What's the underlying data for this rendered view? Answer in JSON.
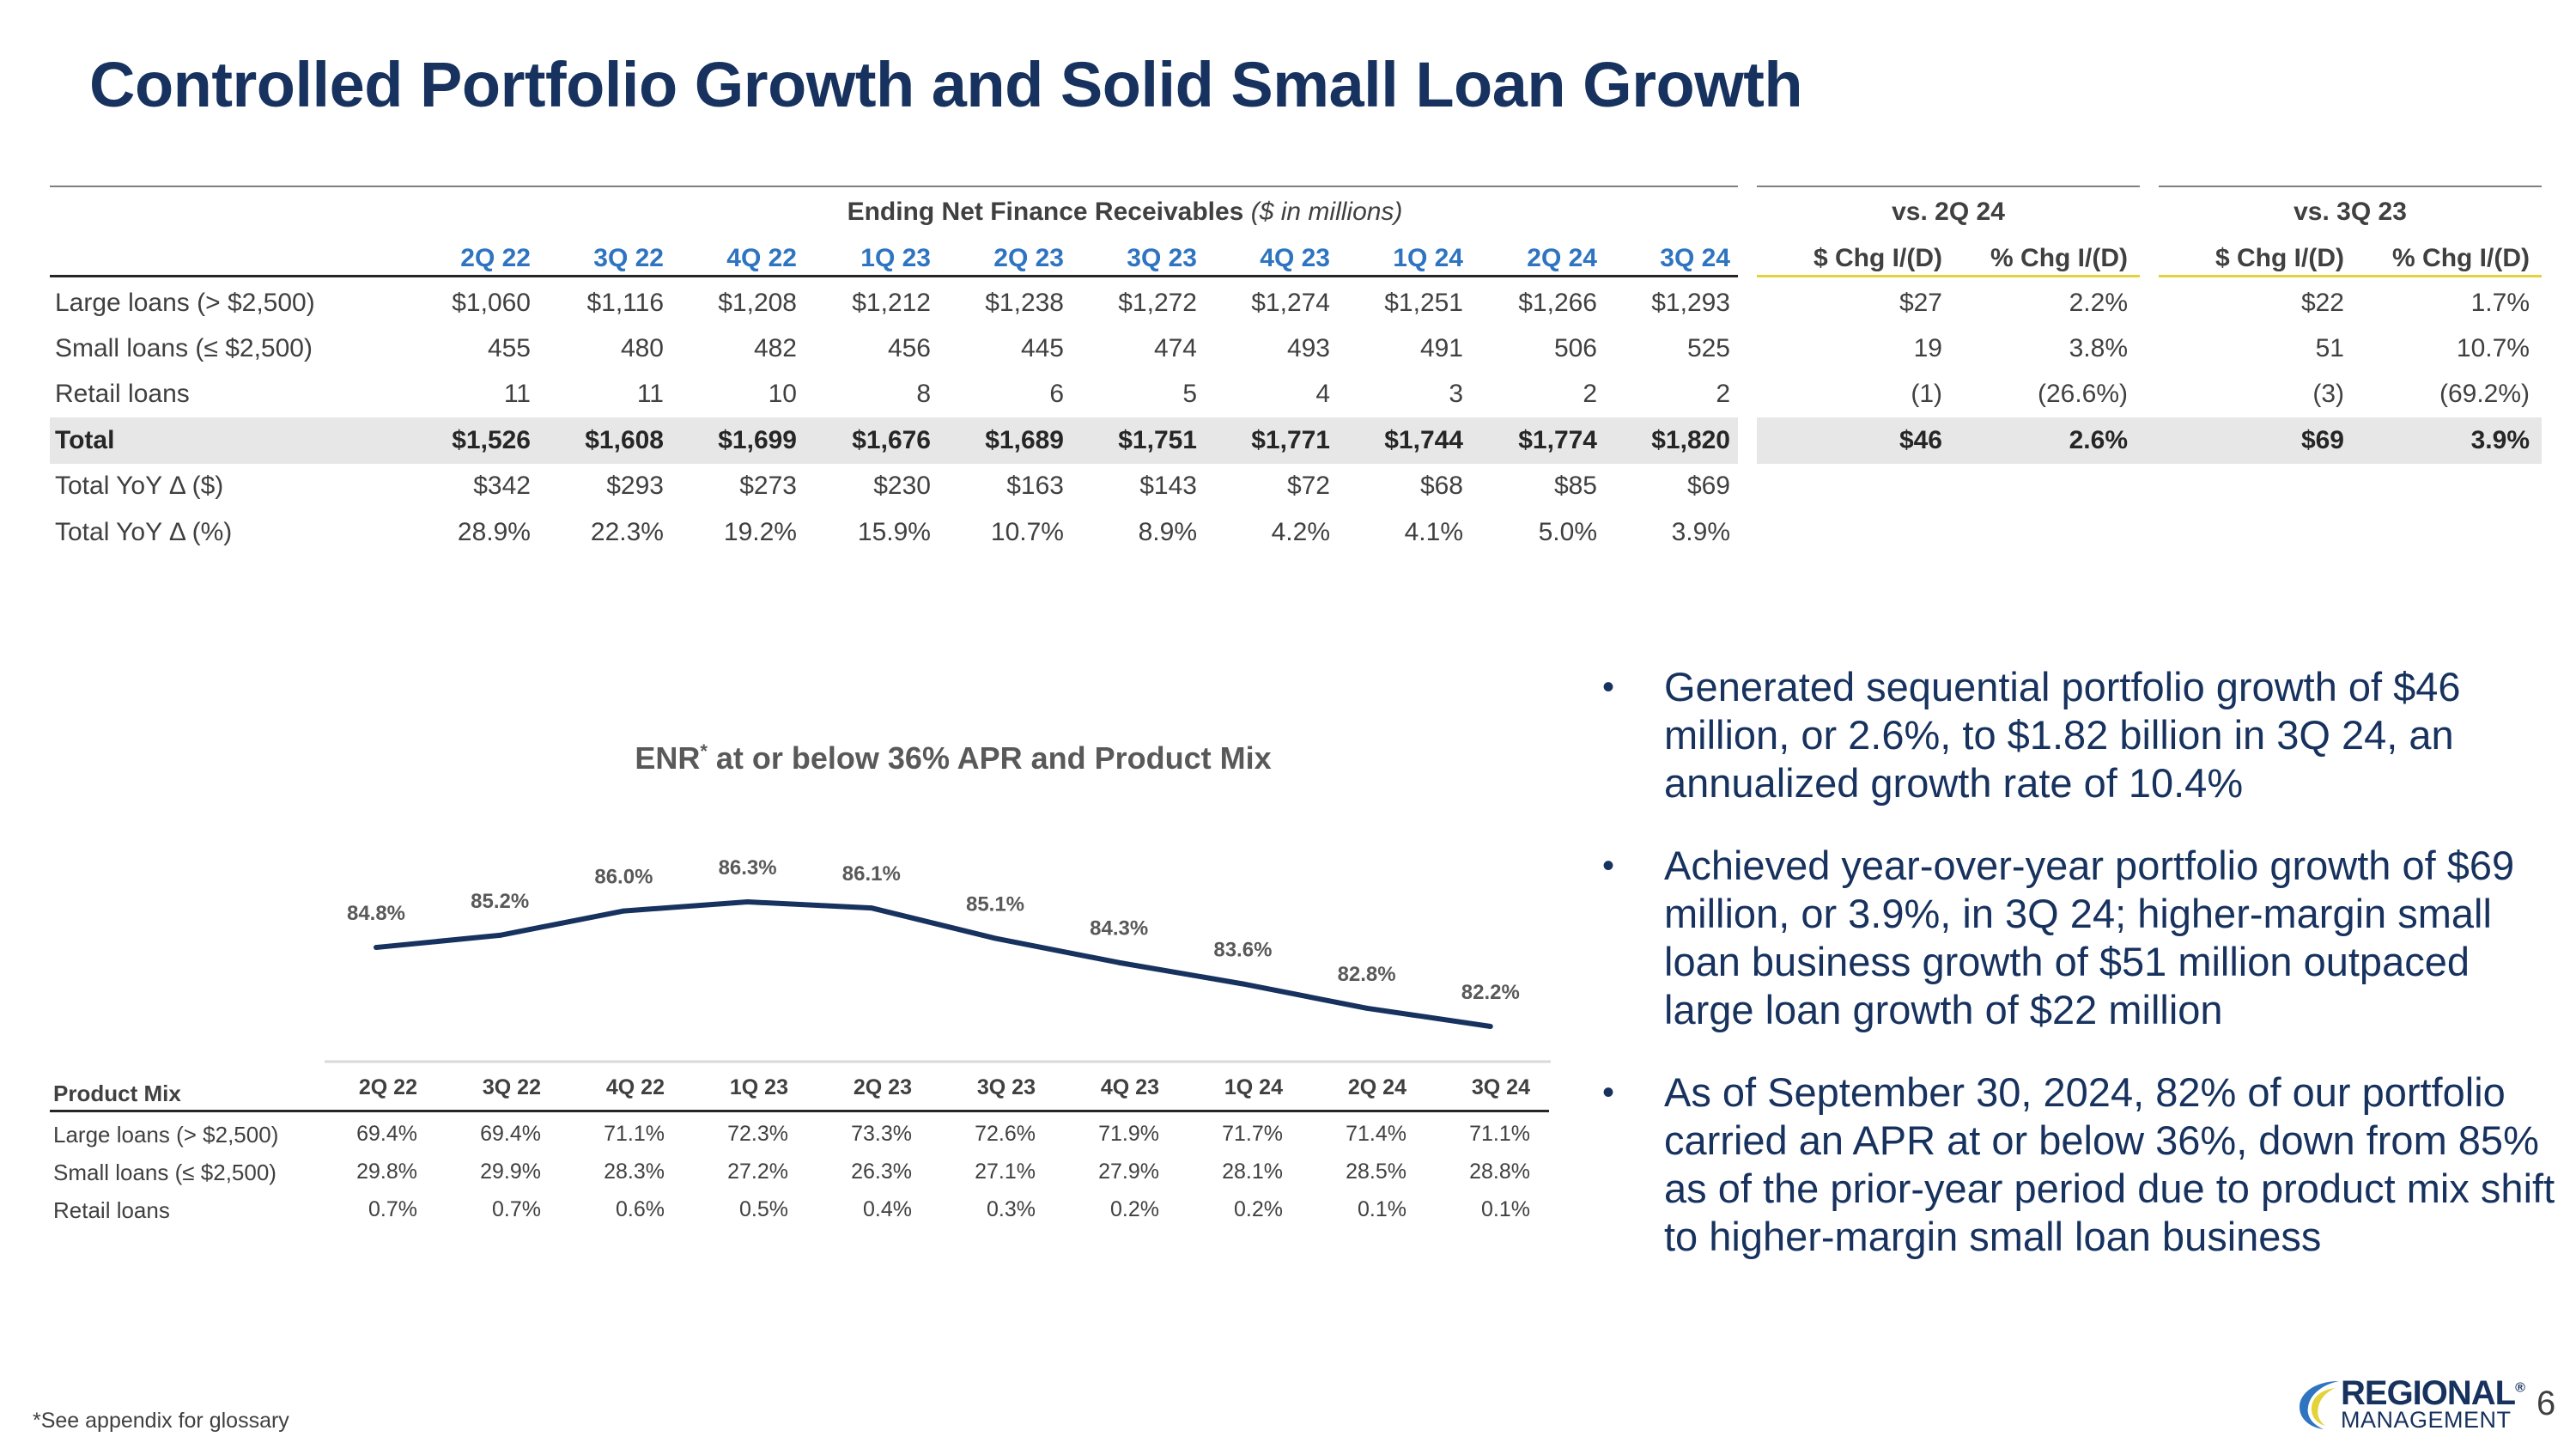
{
  "title": "Controlled Portfolio Growth and Solid Small Loan Growth",
  "enr_table": {
    "group_title_bold": "Ending Net Finance Receivables",
    "group_title_italic": "($ in millions)",
    "periods": [
      "2Q 22",
      "3Q 22",
      "4Q 22",
      "1Q 23",
      "2Q 23",
      "3Q 23",
      "4Q 23",
      "1Q 24",
      "2Q 24",
      "3Q 24"
    ],
    "vs_groups": [
      "vs. 2Q 24",
      "vs. 3Q 23"
    ],
    "chg_headers": [
      "$ Chg I/(D)",
      "% Chg I/(D)",
      "$ Chg I/(D)",
      "% Chg I/(D)"
    ],
    "rows": [
      {
        "label": "Large loans (> $2,500)",
        "values": [
          "$1,060",
          "$1,116",
          "$1,208",
          "$1,212",
          "$1,238",
          "$1,272",
          "$1,274",
          "$1,251",
          "$1,266",
          "$1,293"
        ],
        "chg": [
          "$27",
          "2.2%",
          "$22",
          "1.7%"
        ]
      },
      {
        "label": "Small loans (≤ $2,500)",
        "values": [
          "455",
          "480",
          "482",
          "456",
          "445",
          "474",
          "493",
          "491",
          "506",
          "525"
        ],
        "chg": [
          "19",
          "3.8%",
          "51",
          "10.7%"
        ]
      },
      {
        "label": "Retail loans",
        "values": [
          "11",
          "11",
          "10",
          "8",
          "6",
          "5",
          "4",
          "3",
          "2",
          "2"
        ],
        "chg": [
          "(1)",
          "(26.6%)",
          "(3)",
          "(69.2%)"
        ]
      },
      {
        "label": "Total",
        "values": [
          "$1,526",
          "$1,608",
          "$1,699",
          "$1,676",
          "$1,689",
          "$1,751",
          "$1,771",
          "$1,744",
          "$1,774",
          "$1,820"
        ],
        "chg": [
          "$46",
          "2.6%",
          "$69",
          "3.9%"
        ]
      },
      {
        "label": "Total YoY Δ ($)",
        "values": [
          "$342",
          "$293",
          "$273",
          "$230",
          "$163",
          "$143",
          "$72",
          "$68",
          "$85",
          "$69"
        ],
        "chg": []
      },
      {
        "label": "Total YoY Δ (%)",
        "values": [
          "28.9%",
          "22.3%",
          "19.2%",
          "15.9%",
          "10.7%",
          "8.9%",
          "4.2%",
          "4.1%",
          "5.0%",
          "3.9%"
        ],
        "chg": []
      }
    ]
  },
  "chart_data": {
    "type": "line",
    "title": "ENR at or below 36% APR and Product Mix",
    "title_main": "ENR",
    "title_sup": "*",
    "title_rest": " at or below 36% APR and Product Mix",
    "categories": [
      "2Q 22",
      "3Q 22",
      "4Q 22",
      "1Q 23",
      "2Q 23",
      "3Q 23",
      "4Q 23",
      "1Q 24",
      "2Q 24",
      "3Q 24"
    ],
    "series": [
      {
        "name": "ENR at or below 36% APR",
        "values": [
          84.8,
          85.2,
          86.0,
          86.3,
          86.1,
          85.1,
          84.3,
          83.6,
          82.8,
          82.2
        ]
      }
    ],
    "data_labels": [
      "84.8%",
      "85.2%",
      "86.0%",
      "86.3%",
      "86.1%",
      "85.1%",
      "84.3%",
      "83.6%",
      "82.8%",
      "82.2%"
    ],
    "ylim": [
      78,
      90
    ],
    "xlabel": "",
    "ylabel": "",
    "line_color": "#17325e"
  },
  "product_mix": {
    "header": "Product Mix",
    "rows": [
      {
        "label": "Large loans (> $2,500)",
        "values": [
          "69.4%",
          "69.4%",
          "71.1%",
          "72.3%",
          "73.3%",
          "72.6%",
          "71.9%",
          "71.7%",
          "71.4%",
          "71.1%"
        ]
      },
      {
        "label": "Small loans (≤ $2,500)",
        "values": [
          "29.8%",
          "29.9%",
          "28.3%",
          "27.2%",
          "26.3%",
          "27.1%",
          "27.9%",
          "28.1%",
          "28.5%",
          "28.8%"
        ]
      },
      {
        "label": "Retail loans",
        "values": [
          "0.7%",
          "0.7%",
          "0.6%",
          "0.5%",
          "0.4%",
          "0.3%",
          "0.2%",
          "0.2%",
          "0.1%",
          "0.1%"
        ]
      }
    ]
  },
  "bullets": [
    "Generated sequential portfolio growth of $46 million, or 2.6%, to $1.82 billion in 3Q 24, an annualized growth rate of 10.4%",
    "Achieved year-over-year portfolio growth of $69 million, or 3.9%, in 3Q 24; higher-margin small loan business growth of $51 million outpaced large loan growth of $22 million",
    "As of September 30, 2024, 82% of our portfolio carried an APR at or below 36%, down from 85% as of the prior-year period due to product mix shift to higher-margin small loan business"
  ],
  "bullet_symbol": "•",
  "footnote": "*See appendix for glossary",
  "logo": {
    "line1": "REGIONAL",
    "line2": "MANAGEMENT",
    "mark": "®"
  },
  "page_number": "6",
  "colors": {
    "navy": "#17325e",
    "blue": "#2e74c0",
    "yellow": "#e4d23a",
    "shade": "#e7e7e7"
  }
}
